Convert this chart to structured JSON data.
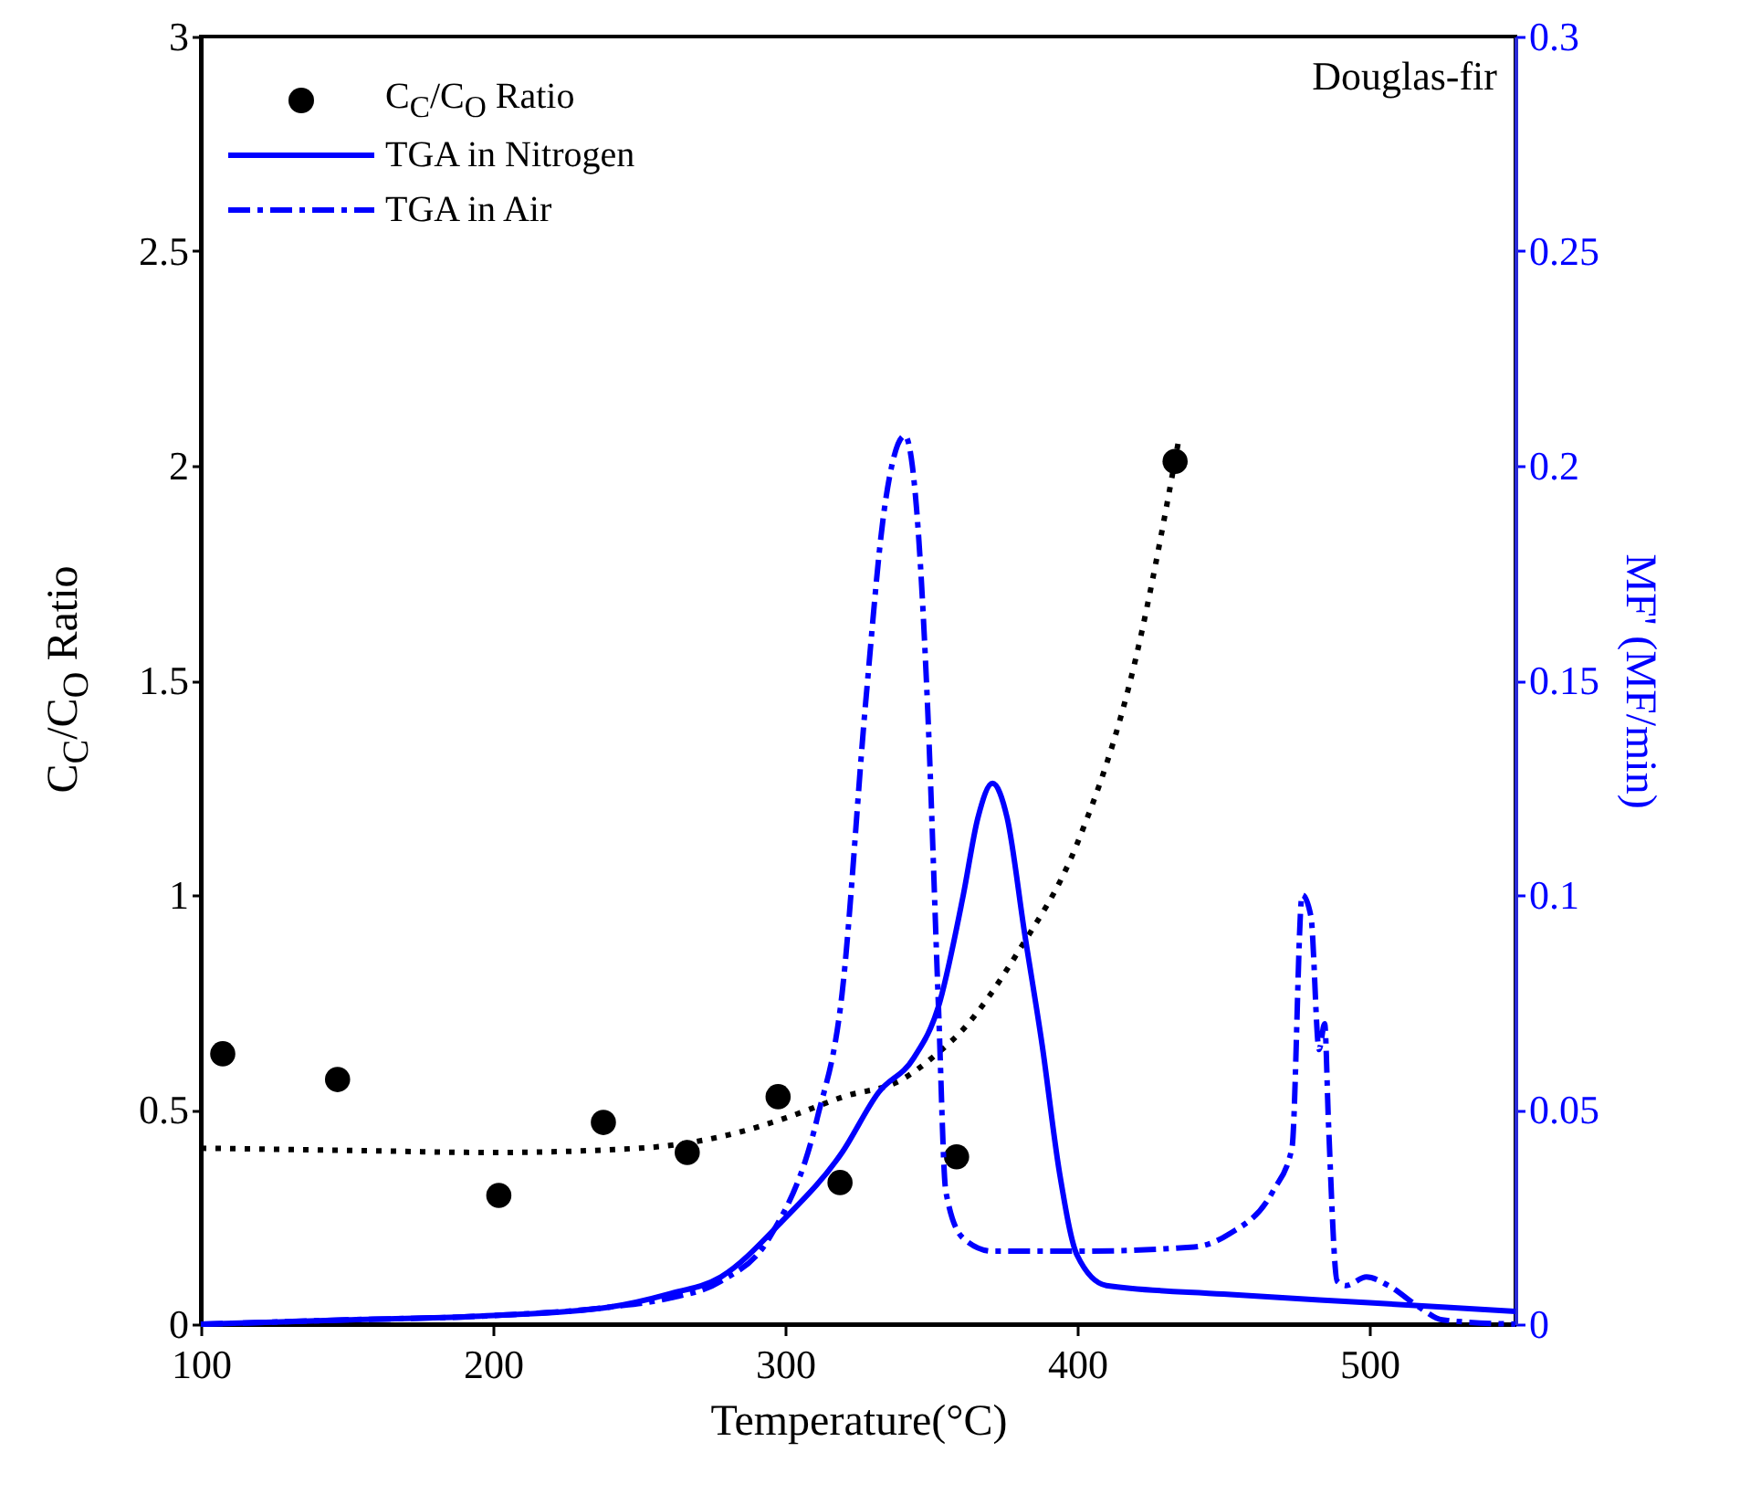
{
  "chart_data": {
    "type": "line",
    "xlabel": "Temperature(°C)",
    "ylabel": "C$_{C}$/C$_{O}$ Ratio",
    "y2label": "MF' (MF/min)",
    "annotations": [
      "Douglas-fir"
    ],
    "xlim": [
      100,
      550
    ],
    "xticks": [
      100,
      200,
      300,
      400,
      500
    ],
    "ylim": [
      0,
      3
    ],
    "yticks": [
      0,
      0.5,
      1,
      1.5,
      2,
      2.5,
      3
    ],
    "y2lim": [
      0,
      0.3
    ],
    "y2ticks": [
      0,
      0.05,
      0.1,
      0.15,
      0.2,
      0.25,
      0.3
    ],
    "legend": "top left",
    "series": [
      {
        "name": "C$_{C}$/C$_{O}$ Ratio",
        "type": "scatter",
        "marker": "circle",
        "color": "#000000",
        "x": [
          107.5,
          146.8,
          202,
          237.8,
          266.5,
          297.6,
          318.8,
          358.7,
          433.5
        ],
        "values": [
          0.63,
          0.57,
          0.3,
          0.47,
          0.4,
          0.53,
          0.33,
          0.39,
          2.01
        ]
      },
      {
        "line_style": "dotted",
        "color": "#000000",
        "x": [
          100,
          150,
          200,
          250,
          280,
          300,
          320,
          340,
          352,
          360,
          380,
          400,
          420,
          435
        ],
        "values": [
          0.41,
          0.405,
          0.4,
          0.41,
          0.44,
          0.48,
          0.53,
          0.57,
          0.63,
          0.68,
          0.87,
          1.12,
          1.55,
          2.07
        ]
      },
      {
        "name": "TGA in Nitrogen",
        "axis": "y2",
        "line_style": "solid",
        "color": "#0000ff",
        "x": [
          100,
          150,
          200,
          240,
          260,
          278,
          299,
          319.5,
          332,
          344,
          352.5,
          361,
          366,
          371,
          376,
          382,
          388,
          394,
          400,
          410,
          450,
          500,
          550
        ],
        "values": [
          0,
          0.001,
          0.002,
          0.004,
          0.007,
          0.011,
          0.024,
          0.04,
          0.054,
          0.062,
          0.074,
          0.1,
          0.118,
          0.126,
          0.118,
          0.091,
          0.065,
          0.035,
          0.016,
          0.009,
          0.007,
          0.005,
          0.003
        ]
      },
      {
        "name": "TGA in Air",
        "axis": "y2",
        "line_style": "dashed",
        "color": "#0000ff",
        "x": [
          100,
          150,
          200,
          240,
          260,
          278,
          294.5,
          311,
          319.5,
          327.6,
          334,
          341,
          345,
          348.7,
          352.5,
          355,
          361,
          371,
          400,
          440,
          452,
          467,
          473.5,
          477,
          480,
          482.8,
          484.7,
          486,
          489,
          492,
          499,
          506.5,
          517,
          525,
          550
        ],
        "values": [
          0,
          0.001,
          0.002,
          0.004,
          0.006,
          0.01,
          0.02,
          0.048,
          0.077,
          0.145,
          0.19,
          0.207,
          0.19,
          0.145,
          0.074,
          0.031,
          0.02,
          0.017,
          0.017,
          0.018,
          0.021,
          0.031,
          0.041,
          0.1,
          0.095,
          0.064,
          0.07,
          0.047,
          0.01,
          0.009,
          0.011,
          0.009,
          0.004,
          0.001,
          0
        ]
      }
    ]
  }
}
